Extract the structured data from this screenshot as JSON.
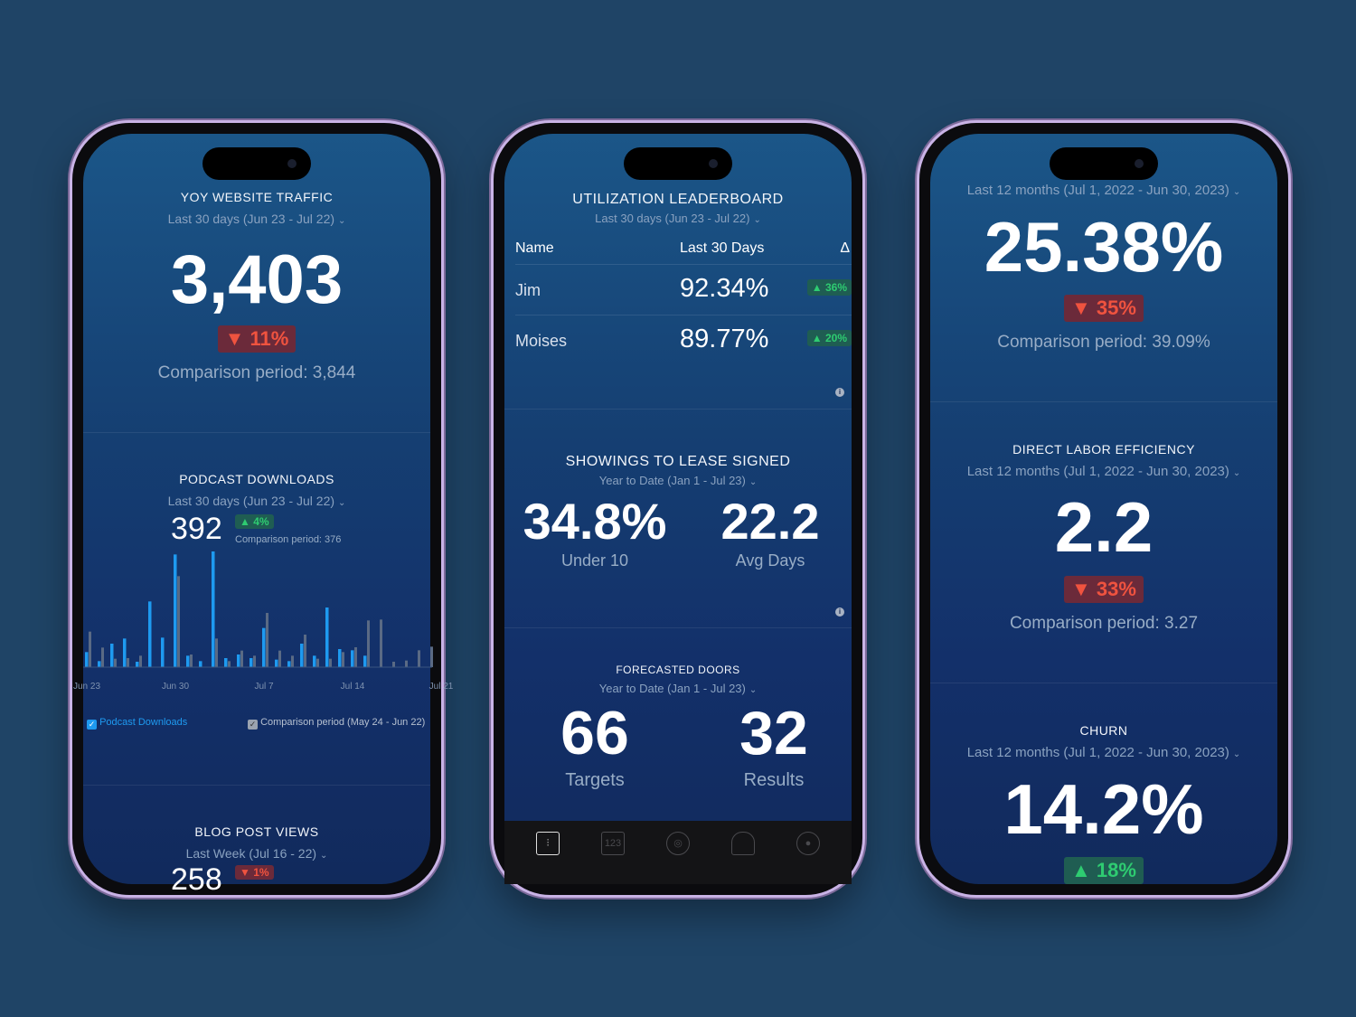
{
  "colors": {
    "background": "#1f4466",
    "up": "#2ecc71",
    "down": "#f0533f",
    "series": "#1e9af0",
    "comparison": "#5a6a84"
  },
  "phone1": {
    "traffic": {
      "title": "YOY WEBSITE TRAFFIC",
      "range": "Last 30 days (Jun 23 - Jul 22)",
      "value": "3,403",
      "change": "▼ 11%",
      "comparison": "Comparison period: 3,844"
    },
    "podcast": {
      "title": "PODCAST DOWNLOADS",
      "range": "Last 30 days (Jun 23 - Jul 22)",
      "value": "392",
      "change": "▲ 4%",
      "comparison": "Comparison period: 376",
      "legend": {
        "series": "Podcast Downloads",
        "comparison": "Comparison period (May 24 - Jun 22)"
      }
    },
    "blog": {
      "title": "BLOG POST VIEWS",
      "range": "Last Week (Jul 16 - 22)",
      "value": "258",
      "change": "▼ 1%"
    }
  },
  "chart_data": {
    "type": "bar",
    "x_tick_labels": [
      "Jun 23",
      "Jun 30",
      "Jul 7",
      "Jul 14",
      "Jul 21"
    ],
    "series": [
      {
        "name": "Podcast Downloads",
        "values": [
          50,
          20,
          78,
          95,
          18,
          218,
          98,
          374,
          38,
          20,
          384,
          30,
          42,
          30,
          130,
          25,
          20,
          78,
          38,
          198,
          60,
          56,
          38,
          0,
          0,
          0,
          0,
          0
        ]
      },
      {
        "name": "Comparison period (May 24 - Jun 22)",
        "values": [
          118,
          65,
          28,
          30,
          38,
          0,
          0,
          302,
          42,
          0,
          95,
          20,
          55,
          38,
          180,
          55,
          38,
          108,
          28,
          28,
          50,
          66,
          155,
          158,
          18,
          22,
          56,
          68
        ]
      }
    ],
    "grid": false,
    "legend": "bottom"
  },
  "phone2": {
    "leaderboard": {
      "title": "UTILIZATION LEADERBOARD",
      "range": "Last 30 days (Jun 23 - Jul 22)",
      "headers": [
        "Name",
        "Last 30 Days",
        "Δ"
      ],
      "rows": [
        {
          "name": "Jim",
          "value": "92.34%",
          "change": "▲ 36%"
        },
        {
          "name": "Moises",
          "value": "89.77%",
          "change": "▲ 20%"
        }
      ]
    },
    "showings": {
      "title": "SHOWINGS TO LEASE SIGNED",
      "range": "Year to Date (Jan 1 - Jul 23)",
      "v1": "34.8%",
      "l1": "Under 10",
      "v2": "22.2",
      "l2": "Avg Days"
    },
    "doors": {
      "title": "FORECASTED DOORS",
      "range": "Year to Date (Jan 1 - Jul 23)",
      "v1": "66",
      "l1": "Targets",
      "v2": "32",
      "l2": "Results"
    },
    "nav": [
      {
        "icon": "dashboard-icon",
        "label": ""
      },
      {
        "icon": "numbers-icon",
        "label": "123"
      },
      {
        "icon": "goal-icon",
        "label": ""
      },
      {
        "icon": "bell-icon",
        "label": ""
      },
      {
        "icon": "profile-icon",
        "label": ""
      }
    ]
  },
  "phone3": {
    "top": {
      "range": "Last 12 months (Jul 1, 2022 - Jun 30, 2023)",
      "value": "25.38%",
      "change": "▼ 35%",
      "comparison": "Comparison period: 39.09%"
    },
    "labor": {
      "title": "DIRECT LABOR EFFICIENCY",
      "range": "Last 12 months (Jul 1, 2022 - Jun 30, 2023)",
      "value": "2.2",
      "change": "▼ 33%",
      "comparison": "Comparison period: 3.27"
    },
    "churn": {
      "title": "CHURN",
      "range": "Last 12 months (Jul 1, 2022 - Jun 30, 2023)",
      "value": "14.2%",
      "change": "▲ 18%"
    }
  }
}
